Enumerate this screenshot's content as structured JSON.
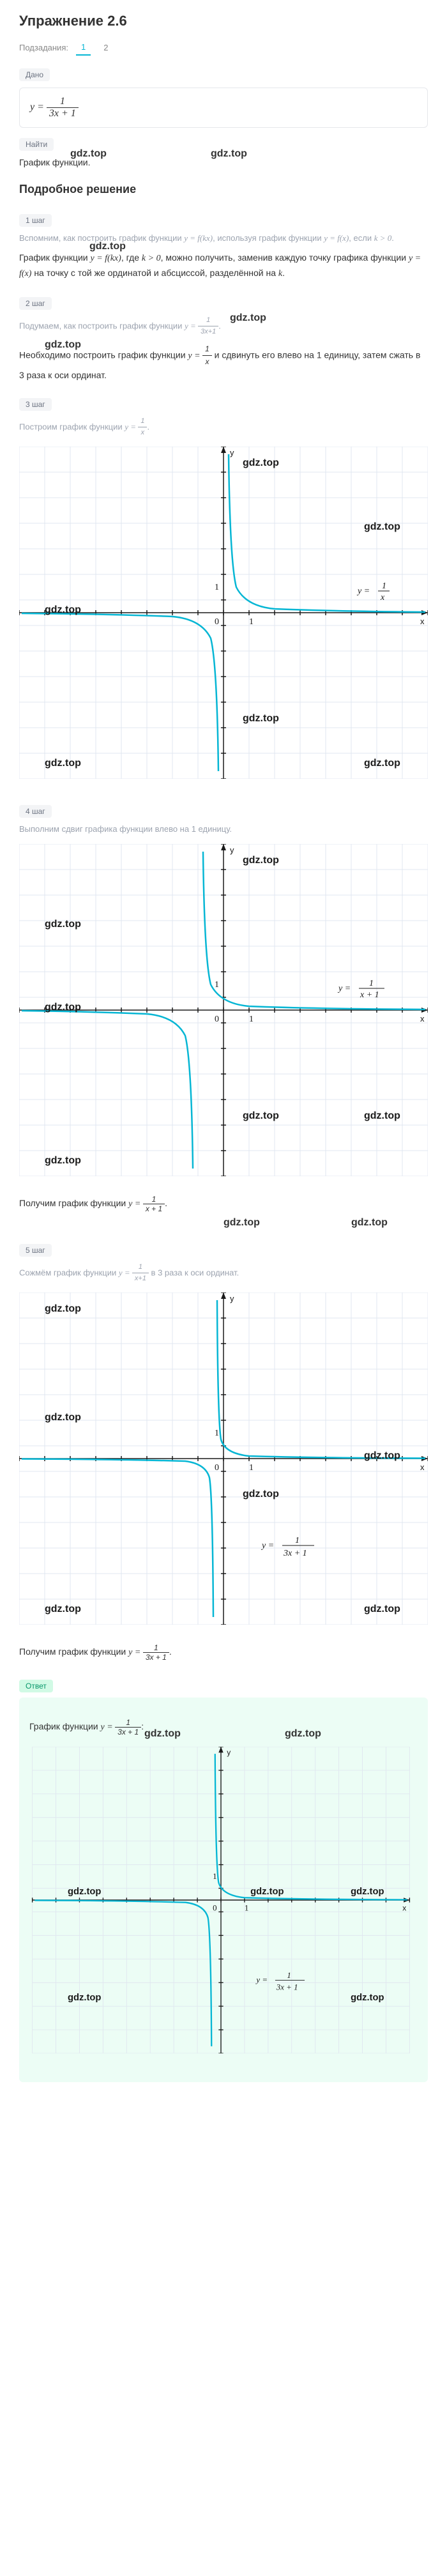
{
  "title": "Упражнение 2.6",
  "subtasks_label": "Подзадания:",
  "subtasks": [
    "1",
    "2"
  ],
  "given_label": "Дано",
  "given_formula": "y = 1/(3x+1)",
  "find_label": "Найти",
  "find_text": "График функции.",
  "solution_title": "Подробное решение",
  "watermark": "gdz.top",
  "steps": [
    {
      "badge": "1 шаг",
      "grey_text": "Вспомним, как построить график функции y = f(kx), используя график функции y = f(x), если k > 0.",
      "main_text": "График функции y = f(kx), где k > 0, можно получить, заменив каждую точку графика функции y = f(x) на точку с той же ординатой и абсциссой, разделённой на k."
    },
    {
      "badge": "2 шаг",
      "grey_text": "Подумаем, как построить график функции y = 1/(3x+1).",
      "main_text": "Необходимо построить график функции y = 1/x и сдвинуть его влево на 1 единицу, затем сжать в 3 раза к оси ординат."
    },
    {
      "badge": "3 шаг",
      "grey_text": "Построим график функции y = 1/x."
    },
    {
      "badge": "4 шаг",
      "grey_text": "Выполним сдвиг графика функции влево на 1 единицу."
    },
    {
      "badge": "5 шаг",
      "grey_text": "Сожмём график функции y = 1/(x+1) в 3 раза к оси ординат."
    }
  ],
  "result1": "Получим график функции y = 1/(x+1).",
  "result2": "Получим график функции y = 1/(3x+1).",
  "answer_label": "Ответ",
  "answer_text": "График функции y = 1/(3x+1):",
  "chart_colors": {
    "grid": "#e0e7f0",
    "axis": "#1a1a1a",
    "curve": "#06b6d4",
    "background": "#ffffff"
  },
  "charts": {
    "chart1": {
      "equation": "y = 1/x",
      "xrange": [
        -7,
        7
      ],
      "yrange": [
        -6,
        6
      ]
    },
    "chart2": {
      "equation": "y = 1/(x+1)",
      "xrange": [
        -7,
        7
      ],
      "yrange": [
        -6,
        6
      ]
    },
    "chart3": {
      "equation": "y = 1/(3x+1)",
      "xrange": [
        -7,
        7
      ],
      "yrange": [
        -6,
        6
      ]
    },
    "chart4": {
      "equation": "y = 1/(3x+1)",
      "xrange": [
        -7,
        7
      ],
      "yrange": [
        -6,
        6
      ]
    }
  }
}
